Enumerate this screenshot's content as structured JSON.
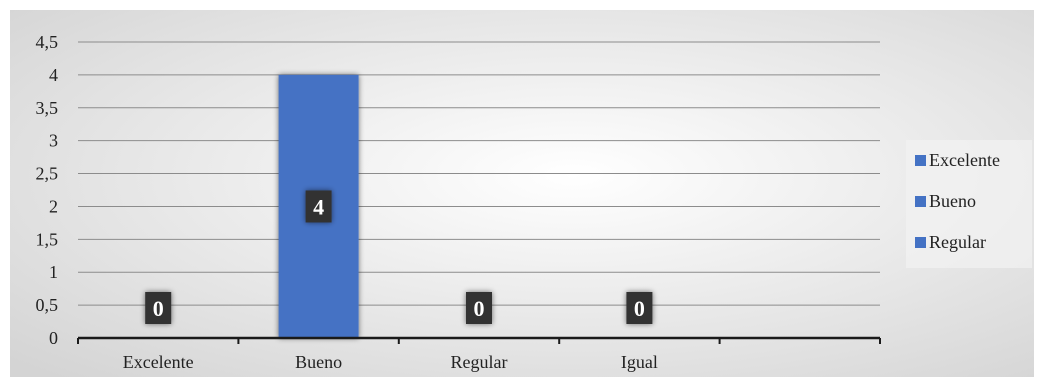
{
  "chart_data": {
    "type": "bar",
    "title": "",
    "xlabel": "",
    "ylabel": "",
    "categories": [
      "Excelente",
      "Bueno",
      "Regular",
      "Igual",
      ""
    ],
    "values": [
      0,
      4,
      0,
      0,
      null
    ],
    "data_labels": [
      "0",
      "4",
      "0",
      "0",
      ""
    ],
    "ylim": [
      0,
      4.5
    ],
    "yticks": [
      0,
      0.5,
      1,
      1.5,
      2,
      2.5,
      3,
      3.5,
      4,
      4.5
    ],
    "ytick_labels": [
      "0",
      "0,5",
      "1",
      "1,5",
      "2",
      "2,5",
      "3",
      "3,5",
      "4",
      "4,5"
    ],
    "grid": true,
    "legend": {
      "placement": "right",
      "entries": [
        "Excelente",
        "Bueno",
        "Regular"
      ]
    },
    "colors": {
      "bar": "#4472c4",
      "label_box": "#333333",
      "label_text": "#ffffff",
      "gridline": "#8c8c8c",
      "axis": "#1a1a1a",
      "text": "#222222",
      "background_center": "#ffffff",
      "background_edge": "#d4d4d4"
    }
  }
}
